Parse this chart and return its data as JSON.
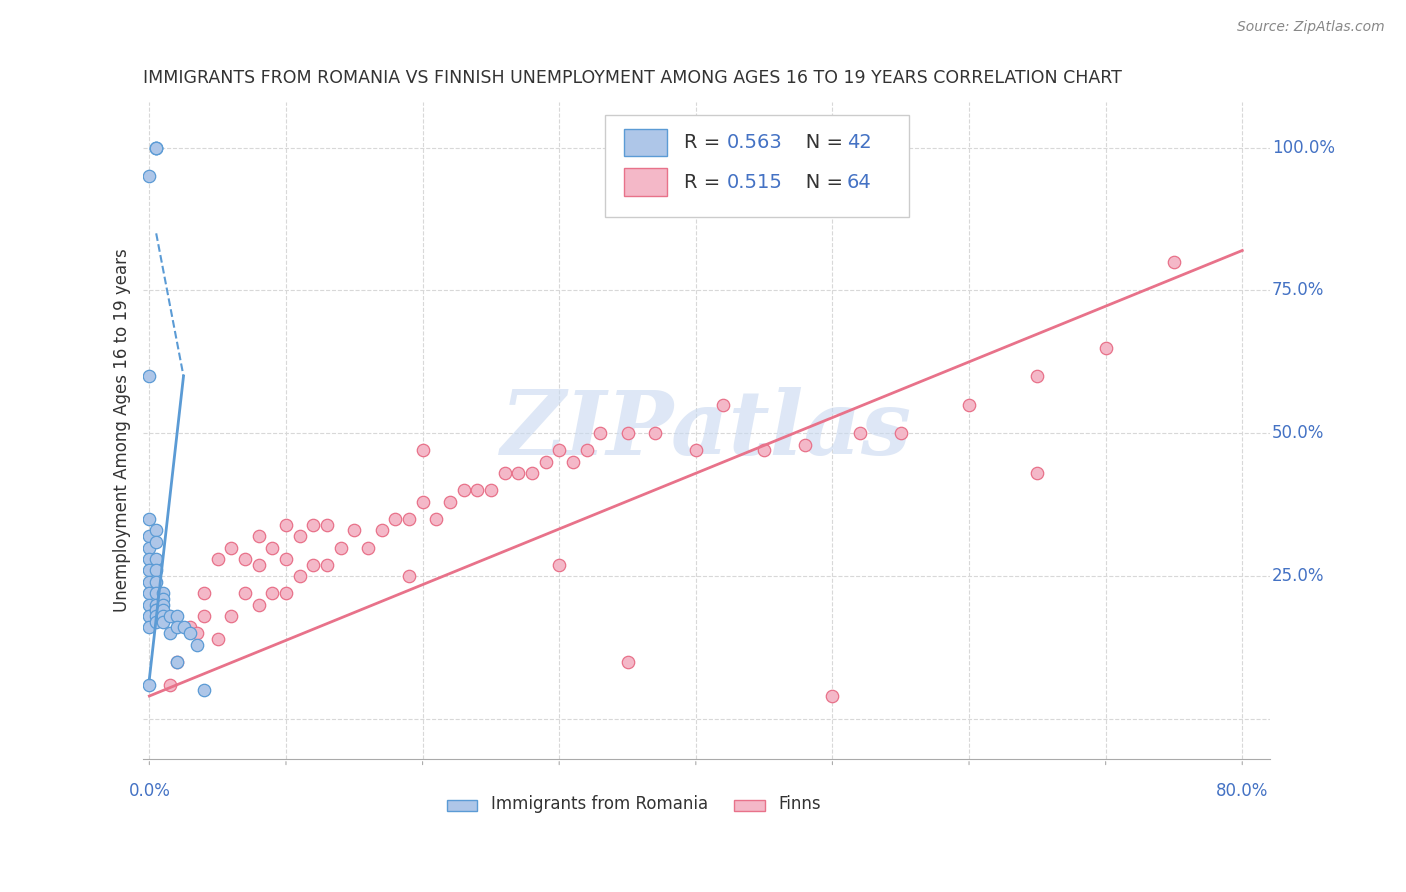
{
  "title": "IMMIGRANTS FROM ROMANIA VS FINNISH UNEMPLOYMENT AMONG AGES 16 TO 19 YEARS CORRELATION CHART",
  "source": "Source: ZipAtlas.com",
  "ylabel": "Unemployment Among Ages 16 to 19 years",
  "xlim": [
    -0.005,
    0.82
  ],
  "ylim": [
    -0.07,
    1.08
  ],
  "x_ticks": [
    0.0,
    0.1,
    0.2,
    0.3,
    0.4,
    0.5,
    0.6,
    0.7,
    0.8
  ],
  "y_ticks": [
    0.0,
    0.25,
    0.5,
    0.75,
    1.0
  ],
  "x_tick_labels_show": [
    "0.0%",
    "80.0%"
  ],
  "x_tick_labels_pos": [
    0.0,
    0.8
  ],
  "y_tick_labels": [
    "25.0%",
    "50.0%",
    "75.0%",
    "100.0%"
  ],
  "y_tick_positions": [
    0.25,
    0.5,
    0.75,
    1.0
  ],
  "legend_entries": [
    {
      "label": "Immigrants from Romania",
      "fill_color": "#aec6e8",
      "edge_color": "#5b9bd5",
      "R": "0.563",
      "N": "42"
    },
    {
      "label": "Finns",
      "fill_color": "#f4b8c8",
      "edge_color": "#e8728a",
      "R": "0.515",
      "N": "64"
    }
  ],
  "romania_scatter_x": [
    0.0,
    0.0,
    0.0,
    0.0,
    0.0,
    0.0,
    0.0,
    0.0,
    0.0,
    0.0,
    0.0,
    0.0,
    0.0,
    0.005,
    0.005,
    0.005,
    0.005,
    0.005,
    0.005,
    0.005,
    0.005,
    0.005,
    0.005,
    0.005,
    0.01,
    0.01,
    0.01,
    0.01,
    0.01,
    0.01,
    0.015,
    0.015,
    0.02,
    0.02,
    0.02,
    0.025,
    0.03,
    0.035,
    0.04,
    0.005,
    0.005,
    0.005
  ],
  "romania_scatter_y": [
    0.95,
    0.6,
    0.35,
    0.32,
    0.3,
    0.28,
    0.26,
    0.24,
    0.22,
    0.2,
    0.18,
    0.16,
    0.06,
    0.33,
    0.31,
    0.28,
    0.26,
    0.24,
    0.22,
    0.2,
    0.19,
    0.19,
    0.18,
    0.17,
    0.22,
    0.21,
    0.2,
    0.19,
    0.18,
    0.17,
    0.18,
    0.15,
    0.18,
    0.16,
    0.1,
    0.16,
    0.15,
    0.13,
    0.05,
    1.0,
    1.0,
    1.0
  ],
  "finns_scatter_x": [
    0.015,
    0.02,
    0.03,
    0.035,
    0.04,
    0.04,
    0.05,
    0.05,
    0.06,
    0.06,
    0.07,
    0.07,
    0.08,
    0.08,
    0.08,
    0.09,
    0.09,
    0.1,
    0.1,
    0.1,
    0.11,
    0.11,
    0.12,
    0.12,
    0.13,
    0.13,
    0.14,
    0.15,
    0.16,
    0.17,
    0.18,
    0.19,
    0.19,
    0.2,
    0.21,
    0.22,
    0.23,
    0.24,
    0.25,
    0.26,
    0.27,
    0.28,
    0.29,
    0.3,
    0.31,
    0.32,
    0.33,
    0.35,
    0.37,
    0.4,
    0.42,
    0.45,
    0.48,
    0.5,
    0.52,
    0.55,
    0.6,
    0.65,
    0.7,
    0.75,
    0.2,
    0.3,
    0.35,
    0.65
  ],
  "finns_scatter_y": [
    0.06,
    0.1,
    0.16,
    0.15,
    0.18,
    0.22,
    0.14,
    0.28,
    0.18,
    0.3,
    0.22,
    0.28,
    0.2,
    0.27,
    0.32,
    0.22,
    0.3,
    0.22,
    0.28,
    0.34,
    0.25,
    0.32,
    0.27,
    0.34,
    0.27,
    0.34,
    0.3,
    0.33,
    0.3,
    0.33,
    0.35,
    0.35,
    0.25,
    0.38,
    0.35,
    0.38,
    0.4,
    0.4,
    0.4,
    0.43,
    0.43,
    0.43,
    0.45,
    0.47,
    0.45,
    0.47,
    0.5,
    0.5,
    0.5,
    0.47,
    0.55,
    0.47,
    0.48,
    0.04,
    0.5,
    0.5,
    0.55,
    0.6,
    0.65,
    0.8,
    0.47,
    0.27,
    0.1,
    0.43
  ],
  "romania_solid_line_x": [
    0.0,
    0.025
  ],
  "romania_solid_line_y": [
    0.07,
    0.6
  ],
  "romania_dash_line_x": [
    0.005,
    0.025
  ],
  "romania_dash_line_y": [
    0.85,
    0.6
  ],
  "finns_line_x": [
    0.0,
    0.8
  ],
  "finns_line_y": [
    0.04,
    0.82
  ],
  "romania_line_color": "#5b9bd5",
  "finns_line_color": "#e8728a",
  "romania_scatter_fill": "#aec6e8",
  "romania_scatter_edge": "#5b9bd5",
  "finns_scatter_fill": "#f4b8c8",
  "finns_scatter_edge": "#e8728a",
  "watermark_text": "ZIPatlas",
  "watermark_color": "#c8d8f0",
  "background_color": "#ffffff",
  "grid_color": "#d8d8d8",
  "title_color": "#222222",
  "blue_color": "#4472c4",
  "dark_color": "#333333"
}
